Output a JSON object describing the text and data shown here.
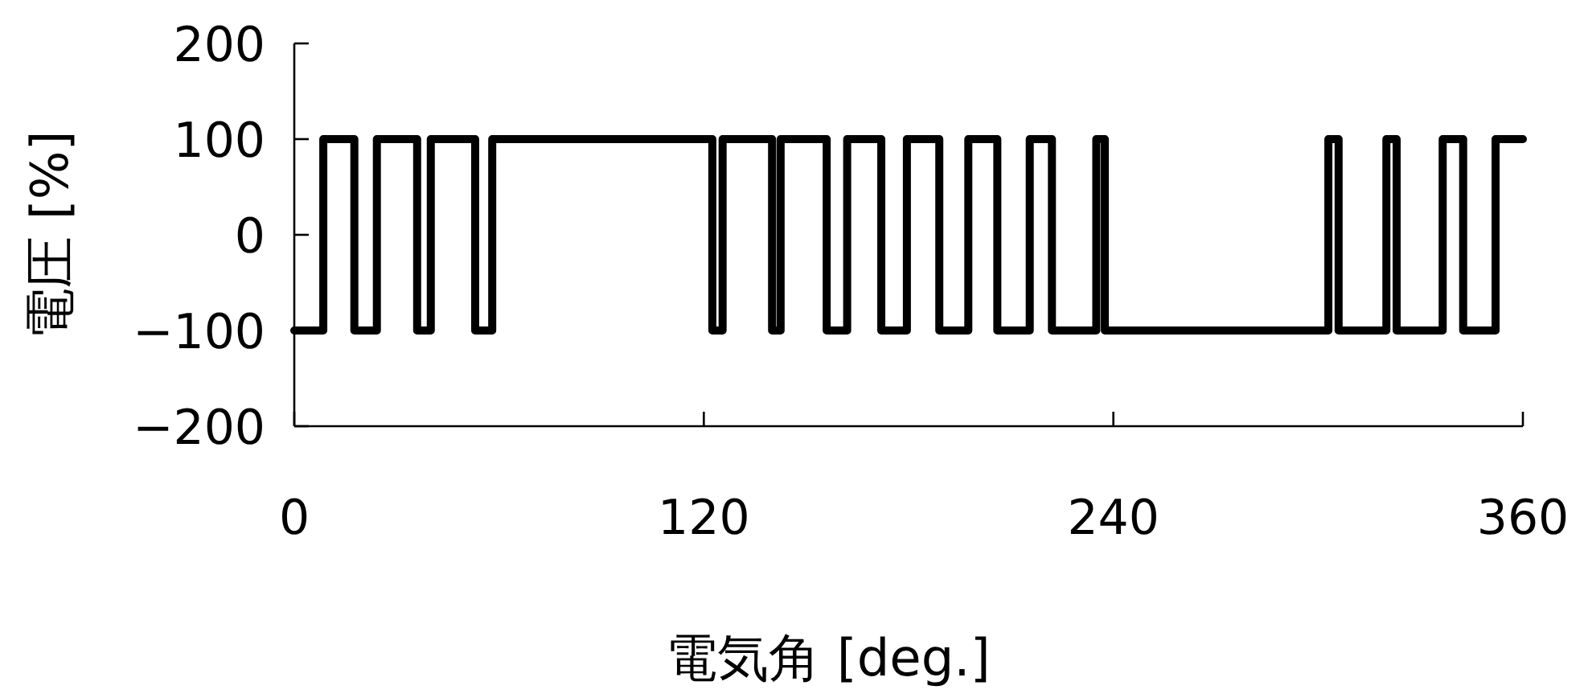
{
  "chart_data": {
    "type": "step",
    "xlabel": "電気角 [deg.]",
    "ylabel": "電圧 [%]",
    "xlim": [
      0,
      360
    ],
    "ylim": [
      -200,
      200
    ],
    "xticks": [
      0,
      120,
      240,
      360
    ],
    "yticks": [
      -200,
      -100,
      0,
      100,
      200
    ],
    "line_style": "solid",
    "marker": "none",
    "series": [
      {
        "color": "#000000",
        "x": [
          0,
          8.5,
          17.6,
          24.2,
          36,
          40,
          53,
          58,
          122.5,
          125.5,
          140,
          142.5,
          156,
          162,
          172,
          179.5,
          189,
          197.5,
          206,
          215.5,
          222,
          235,
          237.5,
          303,
          306,
          320,
          323,
          336.5,
          342.5,
          352,
          360
        ],
        "values": [
          -100,
          100,
          -100,
          100,
          -100,
          100,
          -100,
          100,
          -100,
          100,
          -100,
          100,
          -100,
          100,
          -100,
          100,
          -100,
          100,
          -100,
          100,
          -100,
          100,
          -100,
          100,
          -100,
          100,
          -100,
          100,
          -100,
          100,
          100
        ]
      }
    ]
  }
}
